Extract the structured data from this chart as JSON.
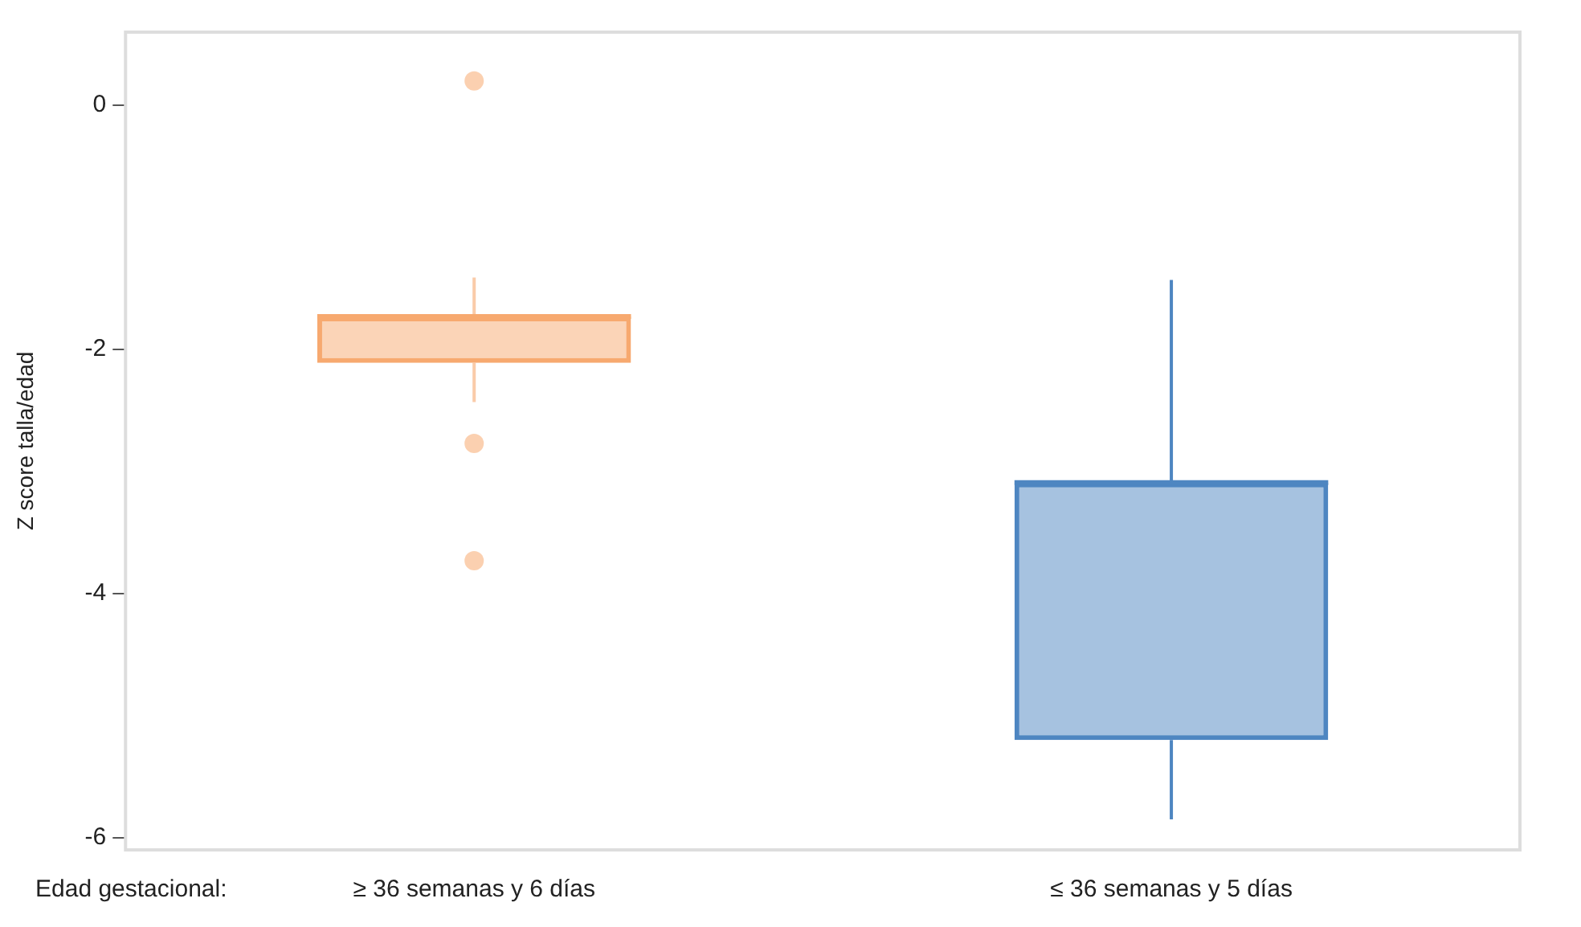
{
  "chart_data": {
    "type": "box",
    "xlabel": "Edad gestacional:",
    "ylabel": "Z score talla/edad",
    "categories": [
      "≥ 36 semanas y 6 días",
      "≤ 36 semanas y 5 días"
    ],
    "colors": [
      "#f7a96f",
      "#4e86c1"
    ],
    "boxes": [
      {
        "low": -2.43,
        "q1": -2.11,
        "median": -1.73,
        "q3": -1.73,
        "high": -1.41,
        "outliers": [
          0.2,
          -2.77,
          -3.73
        ]
      },
      {
        "low": -5.85,
        "q1": -5.2,
        "median": -3.09,
        "q3": -3.09,
        "high": -1.43
      }
    ],
    "ylim": [
      -6.1,
      0.6
    ],
    "yticks": [
      -6,
      -4,
      -2,
      0
    ],
    "grid": false,
    "legend": false
  }
}
